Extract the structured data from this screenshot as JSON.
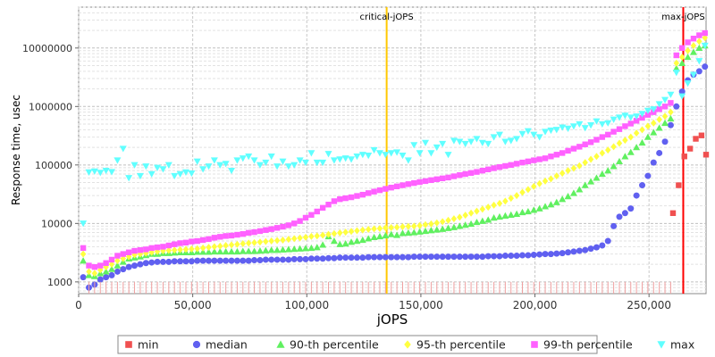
{
  "chart_data": {
    "type": "scatter",
    "x_label": "jOPS",
    "y_label": "Response time, usec",
    "x_lim": [
      0,
      275000
    ],
    "y_lim": [
      630,
      50000000
    ],
    "y_scale": "log",
    "x_ticks": [
      {
        "value": 0,
        "label": "0"
      },
      {
        "value": 50000,
        "label": "50,000"
      },
      {
        "value": 100000,
        "label": "100,000"
      },
      {
        "value": 150000,
        "label": "150,000"
      },
      {
        "value": 200000,
        "label": "200,000"
      },
      {
        "value": 250000,
        "label": "250,000"
      }
    ],
    "y_ticks": [
      {
        "value": 1000,
        "label": "1000"
      },
      {
        "value": 10000,
        "label": "10000"
      },
      {
        "value": 100000,
        "label": "100000"
      },
      {
        "value": 1000000,
        "label": "1000000"
      },
      {
        "value": 10000000,
        "label": "10000000"
      }
    ],
    "grid": true,
    "legend_position": "bottom",
    "reference_lines": [
      {
        "name": "critical-jOPS",
        "x": 135000,
        "color": "#ffc800"
      },
      {
        "name": "max-jOPS",
        "x": 265000,
        "color": "#ff0000"
      }
    ],
    "x_sample_start": 2000,
    "x_sample_step": 2500,
    "series": [
      {
        "name": "min",
        "color": "#f05050",
        "marker": "square",
        "points": [
          [
            260500,
            15000
          ],
          [
            263000,
            45000
          ],
          [
            265500,
            140000
          ],
          [
            268000,
            190000
          ],
          [
            270500,
            280000
          ],
          [
            273000,
            320000
          ],
          [
            275000,
            150000
          ]
        ]
      },
      {
        "name": "median",
        "color": "#6060f0",
        "marker": "circle",
        "values": [
          1200,
          800,
          900,
          1100,
          1200,
          1300,
          1500,
          1650,
          1800,
          1900,
          2000,
          2100,
          2150,
          2200,
          2200,
          2200,
          2250,
          2250,
          2250,
          2250,
          2300,
          2300,
          2300,
          2300,
          2300,
          2300,
          2300,
          2300,
          2300,
          2300,
          2350,
          2350,
          2400,
          2400,
          2400,
          2400,
          2400,
          2450,
          2450,
          2450,
          2500,
          2500,
          2500,
          2550,
          2550,
          2600,
          2600,
          2600,
          2600,
          2600,
          2650,
          2650,
          2650,
          2650,
          2650,
          2650,
          2650,
          2650,
          2700,
          2700,
          2700,
          2700,
          2700,
          2700,
          2700,
          2700,
          2700,
          2700,
          2700,
          2700,
          2700,
          2750,
          2750,
          2750,
          2800,
          2800,
          2800,
          2850,
          2850,
          2900,
          2950,
          3000,
          3000,
          3050,
          3100,
          3200,
          3300,
          3400,
          3500,
          3700,
          3900,
          4200,
          5000,
          9000,
          13000,
          15000,
          18000,
          30000,
          45000,
          65000,
          110000,
          160000,
          250000,
          480000,
          1000000,
          1800000,
          2800000,
          3500000,
          4000000,
          4800000
        ]
      },
      {
        "name": "90-th percentile",
        "color": "#60f060",
        "marker": "triangle",
        "values": [
          2300,
          1300,
          1250,
          1400,
          1500,
          1650,
          1900,
          2200,
          2500,
          2600,
          2700,
          2850,
          3000,
          3000,
          3100,
          3100,
          3150,
          3200,
          3200,
          3200,
          3250,
          3250,
          3250,
          3300,
          3300,
          3300,
          3300,
          3300,
          3350,
          3350,
          3350,
          3400,
          3450,
          3500,
          3500,
          3550,
          3600,
          3650,
          3700,
          3750,
          3800,
          3900,
          4300,
          6000,
          5000,
          4400,
          4500,
          4800,
          5000,
          5200,
          5500,
          5800,
          6000,
          6200,
          6500,
          6300,
          6800,
          6900,
          7000,
          7200,
          7400,
          7600,
          7800,
          8000,
          8300,
          8600,
          9000,
          9400,
          9800,
          10500,
          11000,
          11500,
          12500,
          13000,
          13500,
          14000,
          14500,
          15500,
          16000,
          17000,
          18000,
          19500,
          21000,
          23000,
          26000,
          29000,
          33000,
          38000,
          45000,
          52000,
          60000,
          70000,
          80000,
          95000,
          115000,
          140000,
          165000,
          200000,
          240000,
          300000,
          360000,
          430000,
          520000,
          620000,
          4500000,
          5500000,
          7000000,
          8500000,
          10000000,
          11000000
        ]
      },
      {
        "name": "95-th percentile",
        "color": "#ffff40",
        "marker": "diamond",
        "values": [
          3000,
          1500,
          1400,
          1600,
          1800,
          2000,
          2300,
          2500,
          2700,
          2900,
          3000,
          3100,
          3200,
          3300,
          3400,
          3450,
          3500,
          3550,
          3600,
          3650,
          3700,
          3800,
          3900,
          4000,
          4100,
          4200,
          4300,
          4400,
          4500,
          4600,
          4700,
          4800,
          4900,
          5000,
          5100,
          5200,
          5350,
          5500,
          5650,
          5800,
          6000,
          6100,
          6300,
          6500,
          6700,
          6900,
          7100,
          7300,
          7500,
          7700,
          7900,
          8100,
          8200,
          8400,
          8500,
          8600,
          8800,
          8900,
          9000,
          9200,
          9500,
          9800,
          10200,
          10700,
          11300,
          12000,
          12800,
          13800,
          15000,
          16200,
          17500,
          19000,
          20500,
          22000,
          24000,
          27000,
          30000,
          34000,
          38000,
          43000,
          48000,
          53000,
          58000,
          65000,
          72000,
          80000,
          88000,
          97000,
          110000,
          125000,
          140000,
          160000,
          180000,
          205000,
          235000,
          265000,
          300000,
          350000,
          400000,
          460000,
          520000,
          600000,
          680000,
          800000,
          5500000,
          7000000,
          9000000,
          11000000,
          13000000,
          15000000
        ]
      },
      {
        "name": "99-th percentile",
        "color": "#ff60ff",
        "marker": "square",
        "values": [
          3800,
          1900,
          1800,
          1900,
          2100,
          2400,
          2800,
          3000,
          3200,
          3400,
          3500,
          3600,
          3800,
          3900,
          4000,
          4200,
          4400,
          4600,
          4700,
          4900,
          5000,
          5200,
          5400,
          5700,
          5900,
          6100,
          6200,
          6400,
          6600,
          6900,
          7100,
          7400,
          7700,
          8000,
          8400,
          8800,
          9300,
          10000,
          11000,
          12500,
          14000,
          16000,
          18500,
          21000,
          24000,
          26000,
          27000,
          28000,
          29500,
          31000,
          33000,
          35000,
          37000,
          39000,
          41000,
          43000,
          45000,
          47000,
          49000,
          51000,
          53000,
          55000,
          57000,
          59000,
          61000,
          64000,
          67000,
          70000,
          73000,
          76000,
          80000,
          84000,
          88000,
          92000,
          96000,
          100000,
          105000,
          110000,
          115000,
          120000,
          125000,
          130000,
          140000,
          150000,
          160000,
          175000,
          190000,
          205000,
          225000,
          245000,
          270000,
          300000,
          330000,
          370000,
          410000,
          460000,
          510000,
          570000,
          640000,
          720000,
          800000,
          900000,
          1000000,
          1150000,
          7500000,
          10000000,
          12500000,
          14500000,
          16500000,
          18000000
        ]
      },
      {
        "name": "max",
        "color": "#60ffff",
        "marker": "triangle-down",
        "values": [
          10000,
          75000,
          78000,
          74000,
          80000,
          76000,
          120000,
          190000,
          60000,
          100000,
          65000,
          95000,
          70000,
          90000,
          85000,
          100000,
          65000,
          70000,
          75000,
          72000,
          115000,
          85000,
          95000,
          120000,
          100000,
          105000,
          80000,
          120000,
          130000,
          140000,
          120000,
          100000,
          110000,
          140000,
          95000,
          115000,
          95000,
          100000,
          120000,
          110000,
          160000,
          110000,
          110000,
          155000,
          120000,
          125000,
          130000,
          125000,
          140000,
          150000,
          145000,
          180000,
          160000,
          150000,
          160000,
          165000,
          145000,
          120000,
          220000,
          160000,
          240000,
          160000,
          200000,
          230000,
          150000,
          260000,
          250000,
          230000,
          250000,
          280000,
          240000,
          230000,
          300000,
          330000,
          250000,
          260000,
          280000,
          340000,
          380000,
          330000,
          300000,
          370000,
          390000,
          400000,
          440000,
          420000,
          460000,
          500000,
          430000,
          480000,
          560000,
          500000,
          520000,
          600000,
          650000,
          700000,
          650000,
          680000,
          750000,
          850000,
          900000,
          1100000,
          1300000,
          1600000,
          3800000,
          1500000,
          2500000,
          3500000,
          6000000,
          11000000
        ]
      }
    ]
  }
}
